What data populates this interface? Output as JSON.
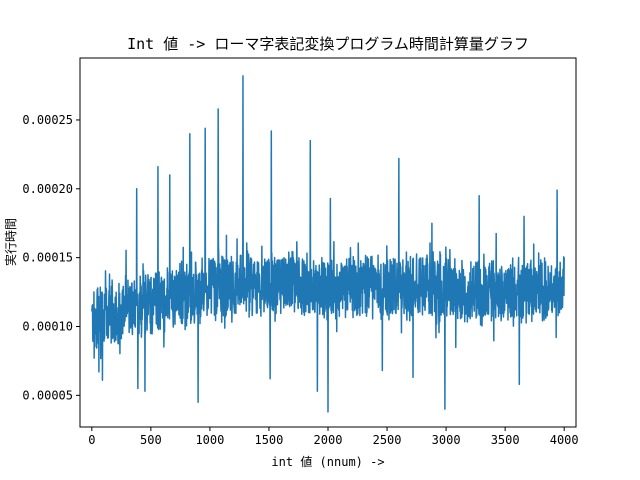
{
  "chart_data": {
    "type": "line",
    "title": "Int 値 -> ローマ字表記変換プログラム時間計算量グラフ",
    "xlabel": "int 値 (nnum) ->",
    "ylabel": "実行時間",
    "xlim": [
      -100,
      4100
    ],
    "ylim": [
      2.7e-05,
      0.000295
    ],
    "x_ticks": [
      0,
      500,
      1000,
      1500,
      2000,
      2500,
      3000,
      3500,
      4000
    ],
    "x_tick_labels": [
      "0",
      "500",
      "1000",
      "1500",
      "2000",
      "2500",
      "3000",
      "3500",
      "4000"
    ],
    "y_ticks": [
      5e-05,
      0.0001,
      0.00015,
      0.0002,
      0.00025
    ],
    "y_tick_labels": [
      "0.00005",
      "0.00010",
      "0.00015",
      "0.00020",
      "0.00025"
    ],
    "grid": false,
    "series": [
      {
        "color": "#1f77b4",
        "x_range": [
          0,
          4000
        ],
        "baseline": [
          [
            0,
            0.000105
          ],
          [
            500,
            0.000118
          ],
          [
            1000,
            0.000126
          ],
          [
            1500,
            0.000131
          ],
          [
            2000,
            0.000128
          ],
          [
            2500,
            0.00013
          ],
          [
            3000,
            0.000126
          ],
          [
            3500,
            0.000124
          ],
          [
            4000,
            0.000127
          ]
        ],
        "peaks": [
          [
            50,
            0.000128
          ],
          [
            150,
            0.000138
          ],
          [
            380,
            0.0002
          ],
          [
            560,
            0.000216
          ],
          [
            660,
            0.00021
          ],
          [
            830,
            0.00024
          ],
          [
            960,
            0.000244
          ],
          [
            1070,
            0.000258
          ],
          [
            1280,
            0.000282
          ],
          [
            1520,
            0.000242
          ],
          [
            1850,
            0.000235
          ],
          [
            2020,
            0.000193
          ],
          [
            2600,
            0.000222
          ],
          [
            2880,
            0.000175
          ],
          [
            3280,
            0.000195
          ],
          [
            3660,
            0.00018
          ],
          [
            3940,
            0.000199
          ],
          [
            4000,
            0.00015
          ]
        ],
        "dips": [
          [
            20,
            7.7e-05
          ],
          [
            60,
            6.7e-05
          ],
          [
            90,
            6.1e-05
          ],
          [
            390,
            5.5e-05
          ],
          [
            450,
            5.3e-05
          ],
          [
            900,
            4.5e-05
          ],
          [
            1510,
            6.2e-05
          ],
          [
            1910,
            5.3e-05
          ],
          [
            2000,
            3.8e-05
          ],
          [
            2460,
            6.8e-05
          ],
          [
            2720,
            6.3e-05
          ],
          [
            2990,
            4e-05
          ],
          [
            3620,
            5.8e-05
          ]
        ]
      }
    ]
  }
}
